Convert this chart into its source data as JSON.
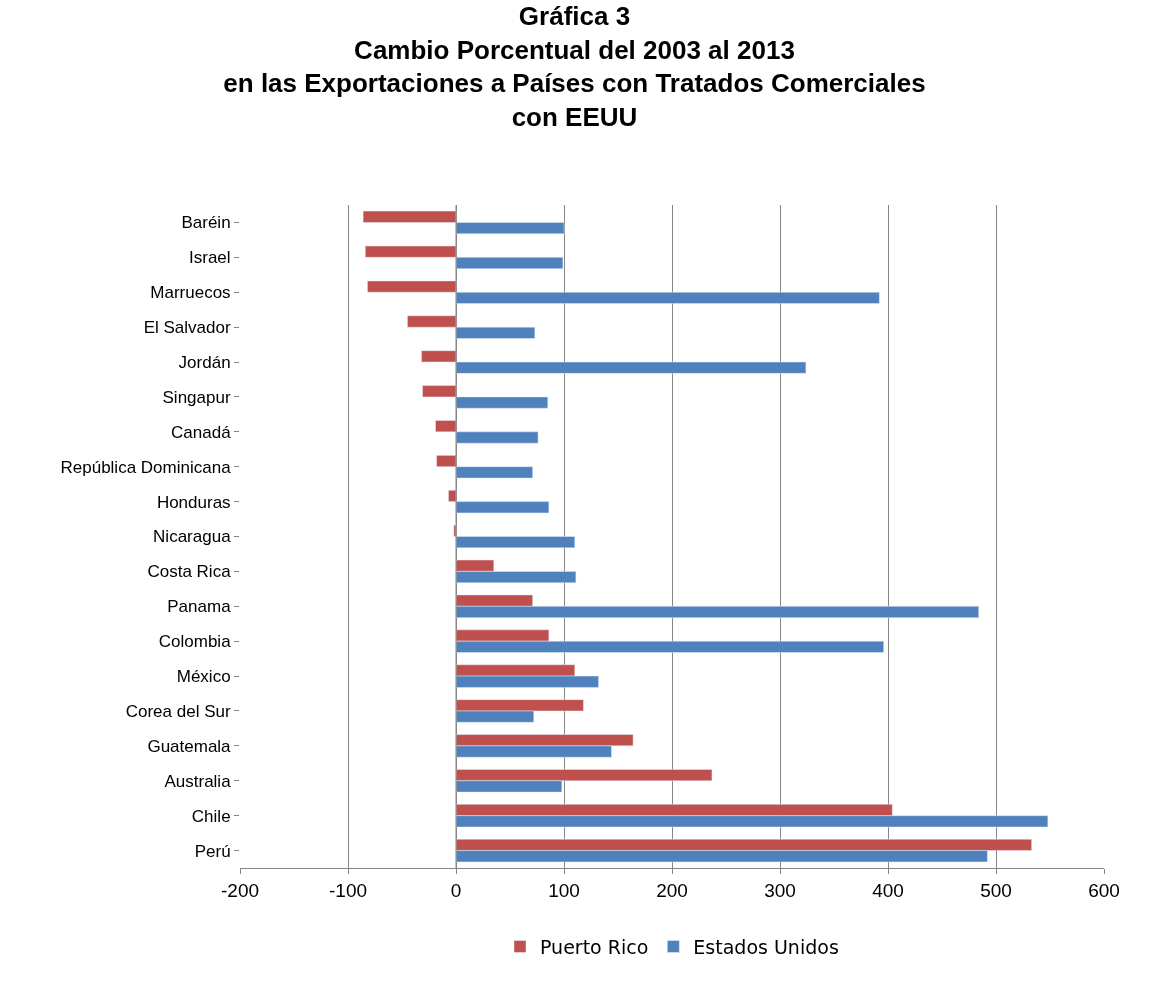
{
  "chart_data": {
    "type": "bar",
    "orientation": "horizontal",
    "title": "Gráfica 3\nCambio Porcentual del 2003 al 2013\nen las Exportaciones a Países con Tratados Comerciales\ncon EEUU",
    "categories": [
      "Baréin",
      "Israel",
      "Marruecos",
      "El Salvador",
      "Jordán",
      "Singapur",
      "Canadá",
      "República Dominicana",
      "Honduras",
      "Nicaragua",
      "Costa Rica",
      "Panama",
      "Colombia",
      "México",
      "Corea del Sur",
      "Guatemala",
      "Australia",
      "Chile",
      "Perú"
    ],
    "series": [
      {
        "name": "Puerto Rico",
        "color": "#c0504d",
        "values": [
          -86,
          -84,
          -82,
          -45,
          -32,
          -31,
          -19,
          -18,
          -7,
          -2,
          35,
          71,
          86,
          110,
          118,
          164,
          237,
          404,
          533
        ]
      },
      {
        "name": "Estados Unidos",
        "color": "#4f81bd",
        "values": [
          100,
          99,
          392,
          73,
          324,
          85,
          76,
          71,
          86,
          110,
          111,
          484,
          396,
          132,
          72,
          144,
          98,
          548,
          492
        ]
      }
    ],
    "xlim": [
      -200,
      600
    ],
    "xticks": [
      -200,
      -100,
      0,
      100,
      200,
      300,
      400,
      500,
      600
    ],
    "grid": "x",
    "legend": "bottom"
  }
}
